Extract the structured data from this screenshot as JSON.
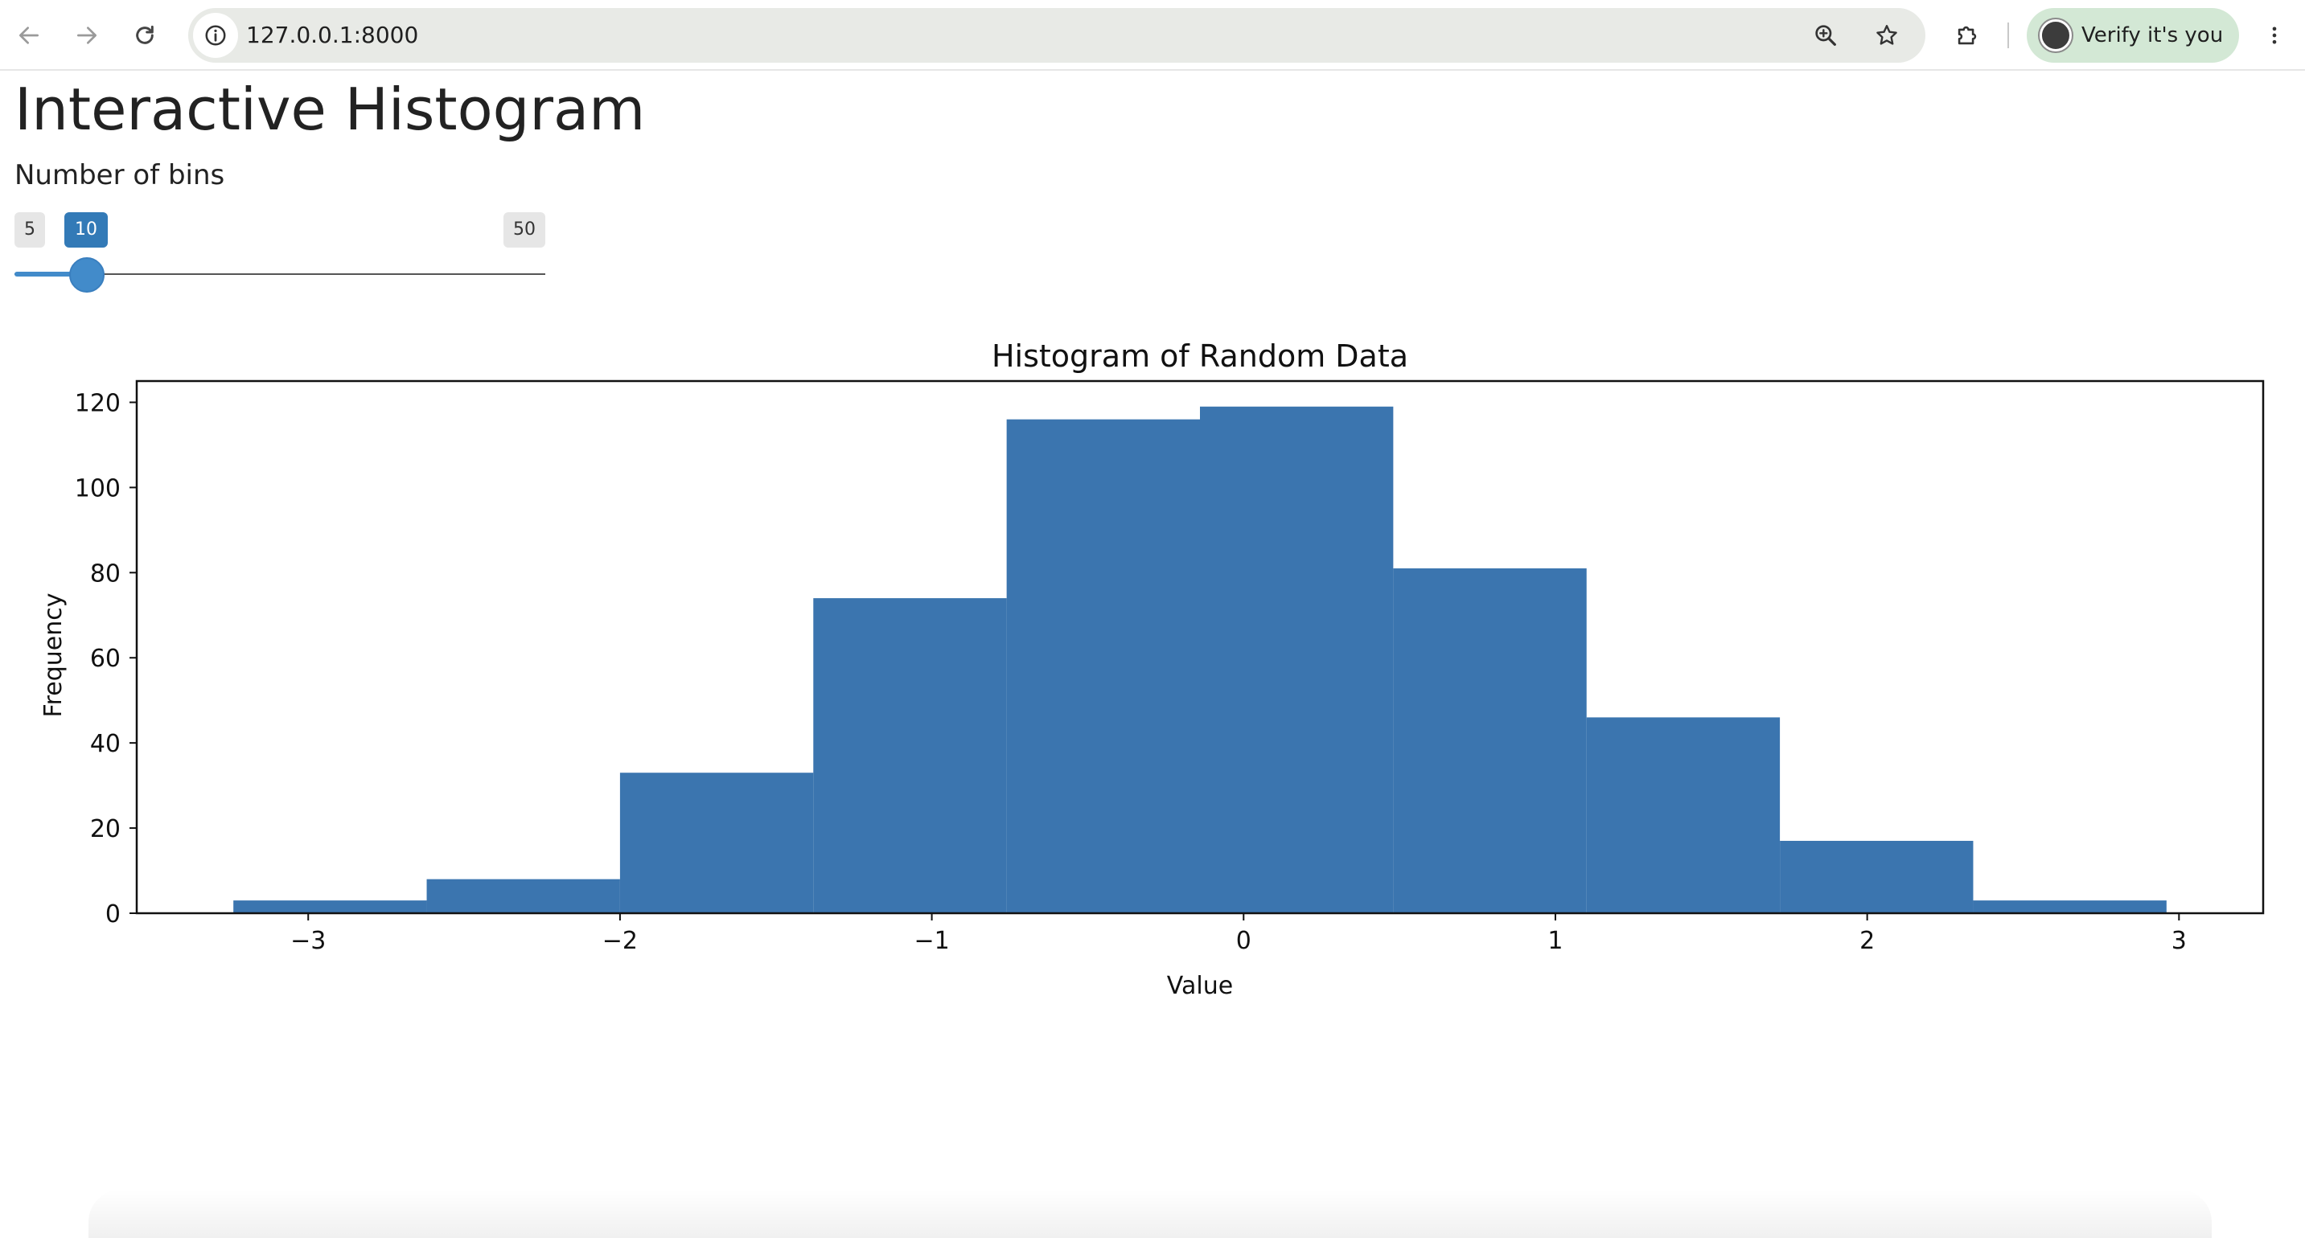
{
  "browser": {
    "url": "127.0.0.1:8000",
    "profile_label": "Verify it's you"
  },
  "page": {
    "title": "Interactive Histogram",
    "slider": {
      "label": "Number of bins",
      "min": 5,
      "max": 50,
      "value": 10,
      "min_text": "5",
      "max_text": "50",
      "value_text": "10",
      "accent_color": "#428bca"
    }
  },
  "chart_data": {
    "type": "bar",
    "title": "Histogram of Random Data",
    "xlabel": "Value",
    "ylabel": "Frequency",
    "bin_edges": [
      -3.24,
      -2.62,
      -2.0,
      -1.38,
      -0.76,
      -0.14,
      0.48,
      1.1,
      1.72,
      2.34,
      2.96
    ],
    "values": [
      3,
      8,
      33,
      74,
      116,
      119,
      81,
      46,
      17,
      3
    ],
    "xlim": [
      -3.55,
      3.27
    ],
    "ylim": [
      0,
      125
    ],
    "xticks": [
      -3,
      -2,
      -1,
      0,
      1,
      2,
      3
    ],
    "xtick_labels": [
      "−3",
      "−2",
      "−1",
      "0",
      "1",
      "2",
      "3"
    ],
    "yticks": [
      0,
      20,
      40,
      60,
      80,
      100,
      120
    ],
    "ytick_labels": [
      "0",
      "20",
      "40",
      "60",
      "80",
      "100",
      "120"
    ],
    "bar_color": "#3b75af",
    "grid": false,
    "legend": "none"
  }
}
